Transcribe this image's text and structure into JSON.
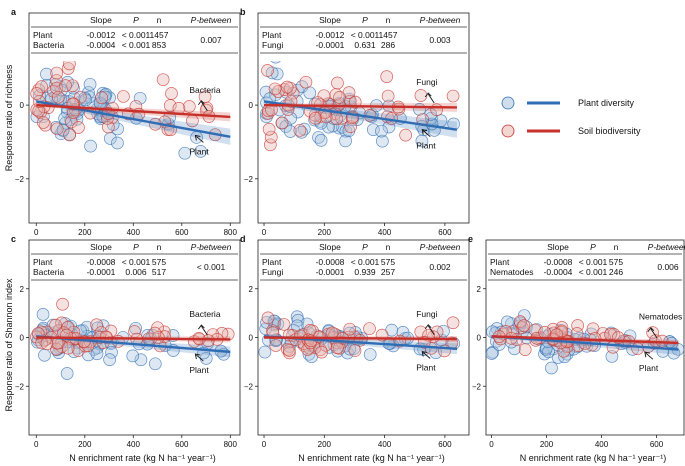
{
  "figure": {
    "ylabel_top": "Response ratio of richness",
    "ylabel_bottom": "Response ratio of Shannon index",
    "xlabel": "N enrichment rate (kg N ha⁻¹ year⁻¹)"
  },
  "legend": {
    "items": [
      {
        "label": "Plant diversity",
        "color": "#2f6db4"
      },
      {
        "label": "Soil biodiversity",
        "color": "#c8312b"
      }
    ]
  },
  "table_headers": [
    "Slope",
    "P",
    "n",
    "P-between"
  ],
  "colors": {
    "plant": "#2f6db4",
    "soil": "#c8312b",
    "plant_point_fill": "#a9c3dc",
    "soil_point_fill": "#e6b4ad"
  },
  "chart_data": [
    {
      "id": "a",
      "type": "scatter",
      "panel_label": "a",
      "xlim": [
        -30,
        840
      ],
      "ylim": [
        -3.2,
        2.5
      ],
      "xticks": [
        0,
        200,
        400,
        600,
        800
      ],
      "yticks": [
        -2,
        0
      ],
      "rows": [
        {
          "name": "Plant",
          "slope": "-0.0012",
          "p": "< 0.001",
          "n": "1457"
        },
        {
          "name": "Bacteria",
          "slope": "-0.0004",
          "p": "< 0.001",
          "n": "853"
        }
      ],
      "p_between": "0.007",
      "series": [
        {
          "name": "Plant",
          "role": "plant",
          "intercept": 0.1,
          "slope": -0.0012,
          "x_end": 800,
          "label": "Plant"
        },
        {
          "name": "Bacteria",
          "role": "soil",
          "intercept": 0.0,
          "slope": -0.0004,
          "x_end": 800,
          "label": "Bacteria"
        }
      ]
    },
    {
      "id": "b",
      "type": "scatter",
      "panel_label": "b",
      "xlim": [
        -20,
        680
      ],
      "ylim": [
        -3.2,
        2.5
      ],
      "xticks": [
        0,
        200,
        400,
        600
      ],
      "yticks": [
        -2,
        0
      ],
      "rows": [
        {
          "name": "Plant",
          "slope": "-0.0012",
          "p": "< 0.001",
          "n": "1457"
        },
        {
          "name": "Fungi",
          "slope": "-0.0001",
          "p": "0.631",
          "n": "286"
        }
      ],
      "p_between": "0.003",
      "series": [
        {
          "name": "Plant",
          "role": "plant",
          "intercept": 0.1,
          "slope": -0.0012,
          "x_end": 640,
          "label": "Plant"
        },
        {
          "name": "Fungi",
          "role": "soil",
          "intercept": 0.0,
          "slope": -0.0001,
          "x_end": 640,
          "label": "Fungi"
        }
      ]
    },
    {
      "id": "c",
      "type": "scatter",
      "panel_label": "c",
      "xlim": [
        -30,
        840
      ],
      "ylim": [
        -4.0,
        4.0
      ],
      "xticks": [
        0,
        200,
        400,
        600,
        800
      ],
      "yticks": [
        -2,
        0,
        2
      ],
      "rows": [
        {
          "name": "Plant",
          "slope": "-0.0008",
          "p": "< 0.001",
          "n": "575"
        },
        {
          "name": "Bacteria",
          "slope": "-0.0001",
          "p": "0.006",
          "n": "517"
        }
      ],
      "p_between": "< 0.001",
      "series": [
        {
          "name": "Plant",
          "role": "plant",
          "intercept": 0.05,
          "slope": -0.0008,
          "x_end": 800,
          "label": "Plant"
        },
        {
          "name": "Bacteria",
          "role": "soil",
          "intercept": 0.0,
          "slope": -0.0001,
          "x_end": 800,
          "label": "Bacteria"
        }
      ]
    },
    {
      "id": "d",
      "type": "scatter",
      "panel_label": "d",
      "xlim": [
        -20,
        680
      ],
      "ylim": [
        -4.0,
        4.0
      ],
      "xticks": [
        0,
        200,
        400,
        600
      ],
      "yticks": [
        -2,
        0,
        2
      ],
      "rows": [
        {
          "name": "Plant",
          "slope": "-0.0008",
          "p": "< 0.001",
          "n": "575"
        },
        {
          "name": "Fungi",
          "slope": "-0.0001",
          "p": "0.939",
          "n": "257"
        }
      ],
      "p_between": "0.002",
      "series": [
        {
          "name": "Plant",
          "role": "plant",
          "intercept": 0.05,
          "slope": -0.0008,
          "x_end": 640,
          "label": "Plant"
        },
        {
          "name": "Fungi",
          "role": "soil",
          "intercept": 0.0,
          "slope": -0.0001,
          "x_end": 640,
          "label": "Fungi"
        }
      ]
    },
    {
      "id": "e",
      "type": "scatter",
      "panel_label": "e",
      "xlim": [
        -20,
        700
      ],
      "ylim": [
        -4.0,
        4.0
      ],
      "xticks": [
        0,
        200,
        400,
        600
      ],
      "yticks": [
        -2,
        0,
        2
      ],
      "rows": [
        {
          "name": "Plant",
          "slope": "-0.0008",
          "p": "< 0.001",
          "n": "575"
        },
        {
          "name": "Nematodes",
          "slope": "-0.0004",
          "p": "< 0.001",
          "n": "246"
        }
      ],
      "p_between": "0.006",
      "series": [
        {
          "name": "Plant",
          "role": "plant",
          "intercept": 0.05,
          "slope": -0.0008,
          "x_end": 680,
          "label": "Plant"
        },
        {
          "name": "Nematodes",
          "role": "soil",
          "intercept": 0.05,
          "slope": -0.0004,
          "x_end": 680,
          "label": "Nematodes"
        }
      ]
    }
  ]
}
